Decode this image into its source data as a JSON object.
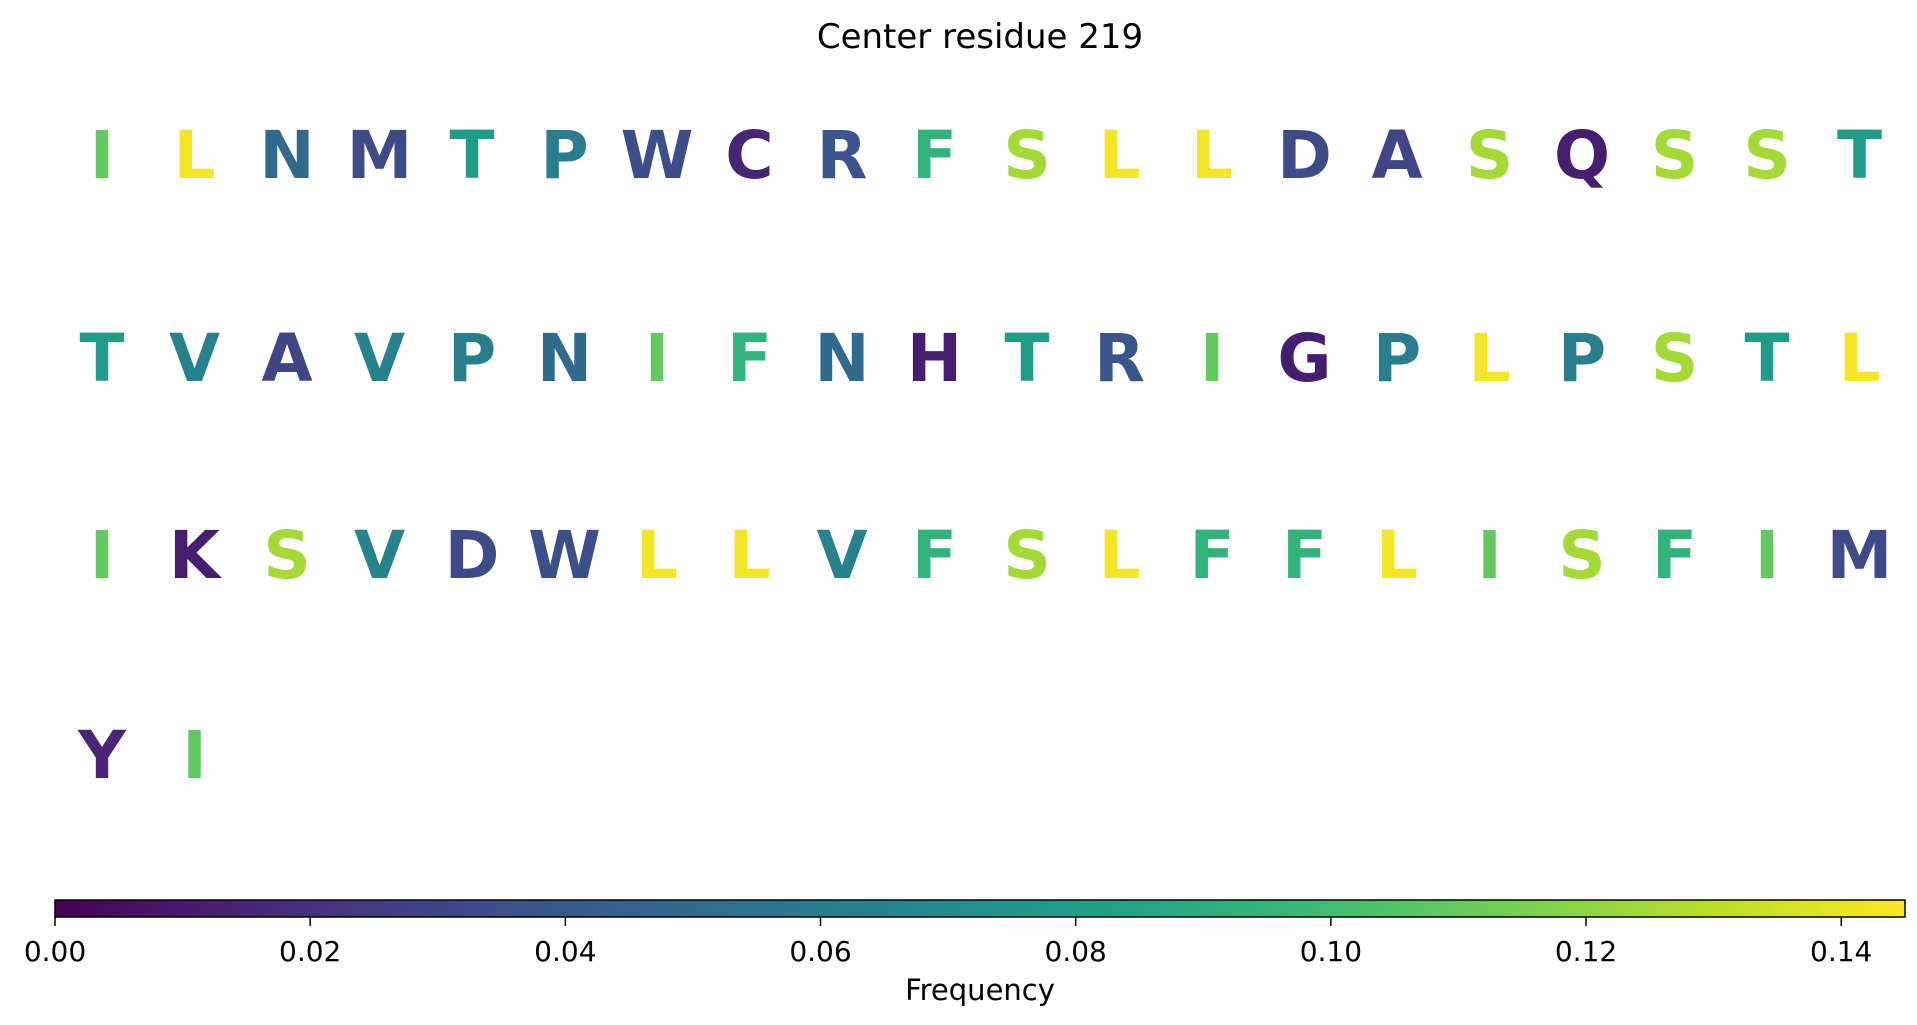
{
  "chart_data": {
    "type": "sequence-logo",
    "title": "Center residue 219",
    "residues": [
      {
        "letter": "I",
        "value": 0.109
      },
      {
        "letter": "L",
        "value": 0.143
      },
      {
        "letter": "N",
        "value": 0.05
      },
      {
        "letter": "M",
        "value": 0.033
      },
      {
        "letter": "T",
        "value": 0.08
      },
      {
        "letter": "P",
        "value": 0.062
      },
      {
        "letter": "W",
        "value": 0.035
      },
      {
        "letter": "C",
        "value": 0.015
      },
      {
        "letter": "R",
        "value": 0.038
      },
      {
        "letter": "F",
        "value": 0.094
      },
      {
        "letter": "S",
        "value": 0.125
      },
      {
        "letter": "L",
        "value": 0.143
      },
      {
        "letter": "L",
        "value": 0.143
      },
      {
        "letter": "D",
        "value": 0.033
      },
      {
        "letter": "A",
        "value": 0.03
      },
      {
        "letter": "S",
        "value": 0.125
      },
      {
        "letter": "Q",
        "value": 0.012
      },
      {
        "letter": "S",
        "value": 0.125
      },
      {
        "letter": "S",
        "value": 0.125
      },
      {
        "letter": "T",
        "value": 0.08
      },
      {
        "letter": "T",
        "value": 0.08
      },
      {
        "letter": "V",
        "value": 0.065
      },
      {
        "letter": "A",
        "value": 0.03
      },
      {
        "letter": "V",
        "value": 0.065
      },
      {
        "letter": "P",
        "value": 0.062
      },
      {
        "letter": "N",
        "value": 0.05
      },
      {
        "letter": "I",
        "value": 0.109
      },
      {
        "letter": "F",
        "value": 0.094
      },
      {
        "letter": "N",
        "value": 0.05
      },
      {
        "letter": "H",
        "value": 0.012
      },
      {
        "letter": "T",
        "value": 0.08
      },
      {
        "letter": "R",
        "value": 0.038
      },
      {
        "letter": "I",
        "value": 0.109
      },
      {
        "letter": "G",
        "value": 0.012
      },
      {
        "letter": "P",
        "value": 0.062
      },
      {
        "letter": "L",
        "value": 0.143
      },
      {
        "letter": "P",
        "value": 0.062
      },
      {
        "letter": "S",
        "value": 0.125
      },
      {
        "letter": "T",
        "value": 0.08
      },
      {
        "letter": "L",
        "value": 0.143
      },
      {
        "letter": "I",
        "value": 0.109
      },
      {
        "letter": "K",
        "value": 0.012
      },
      {
        "letter": "S",
        "value": 0.125
      },
      {
        "letter": "V",
        "value": 0.065
      },
      {
        "letter": "D",
        "value": 0.033
      },
      {
        "letter": "W",
        "value": 0.035
      },
      {
        "letter": "L",
        "value": 0.143
      },
      {
        "letter": "L",
        "value": 0.143
      },
      {
        "letter": "V",
        "value": 0.065
      },
      {
        "letter": "F",
        "value": 0.094
      },
      {
        "letter": "S",
        "value": 0.125
      },
      {
        "letter": "L",
        "value": 0.143
      },
      {
        "letter": "F",
        "value": 0.094
      },
      {
        "letter": "F",
        "value": 0.094
      },
      {
        "letter": "L",
        "value": 0.143
      },
      {
        "letter": "I",
        "value": 0.109
      },
      {
        "letter": "S",
        "value": 0.125
      },
      {
        "letter": "F",
        "value": 0.094
      },
      {
        "letter": "I",
        "value": 0.109
      },
      {
        "letter": "M",
        "value": 0.033
      },
      {
        "letter": "Y",
        "value": 0.015
      },
      {
        "letter": "I",
        "value": 0.109
      }
    ],
    "colormap": "viridis",
    "colorbar": {
      "label": "Frequency",
      "range": [
        0,
        0.145
      ],
      "ticks": [
        0.0,
        0.02,
        0.04,
        0.06,
        0.08,
        0.1,
        0.12,
        0.14
      ],
      "tick_labels": [
        "0.00",
        "0.02",
        "0.04",
        "0.06",
        "0.08",
        "0.10",
        "0.12",
        "0.14"
      ]
    }
  }
}
